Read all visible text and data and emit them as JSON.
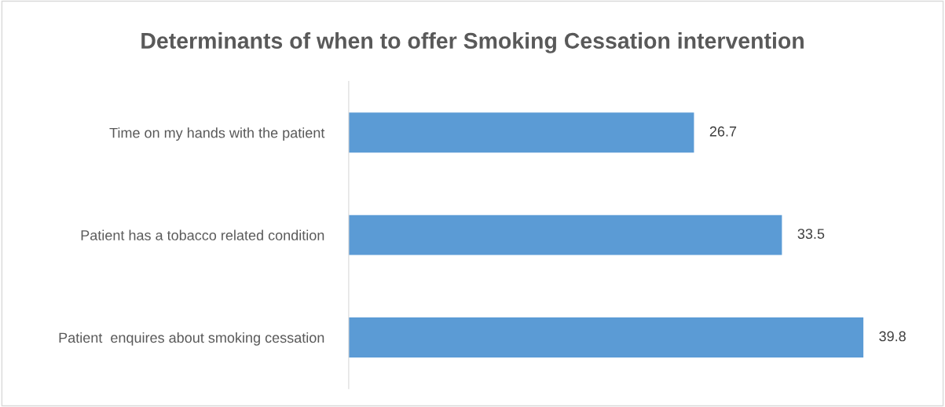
{
  "chart_data": {
    "type": "bar",
    "orientation": "horizontal",
    "title": "Determinants of when to offer Smoking Cessation intervention",
    "categories": [
      "Time on my hands with the patient",
      "Patient has a tobacco related condition",
      "Patient  enquires about smoking cessation"
    ],
    "values": [
      26.7,
      33.5,
      39.8
    ],
    "color": "#5b9bd5",
    "data_labels": true,
    "grid": false,
    "legend": false
  }
}
